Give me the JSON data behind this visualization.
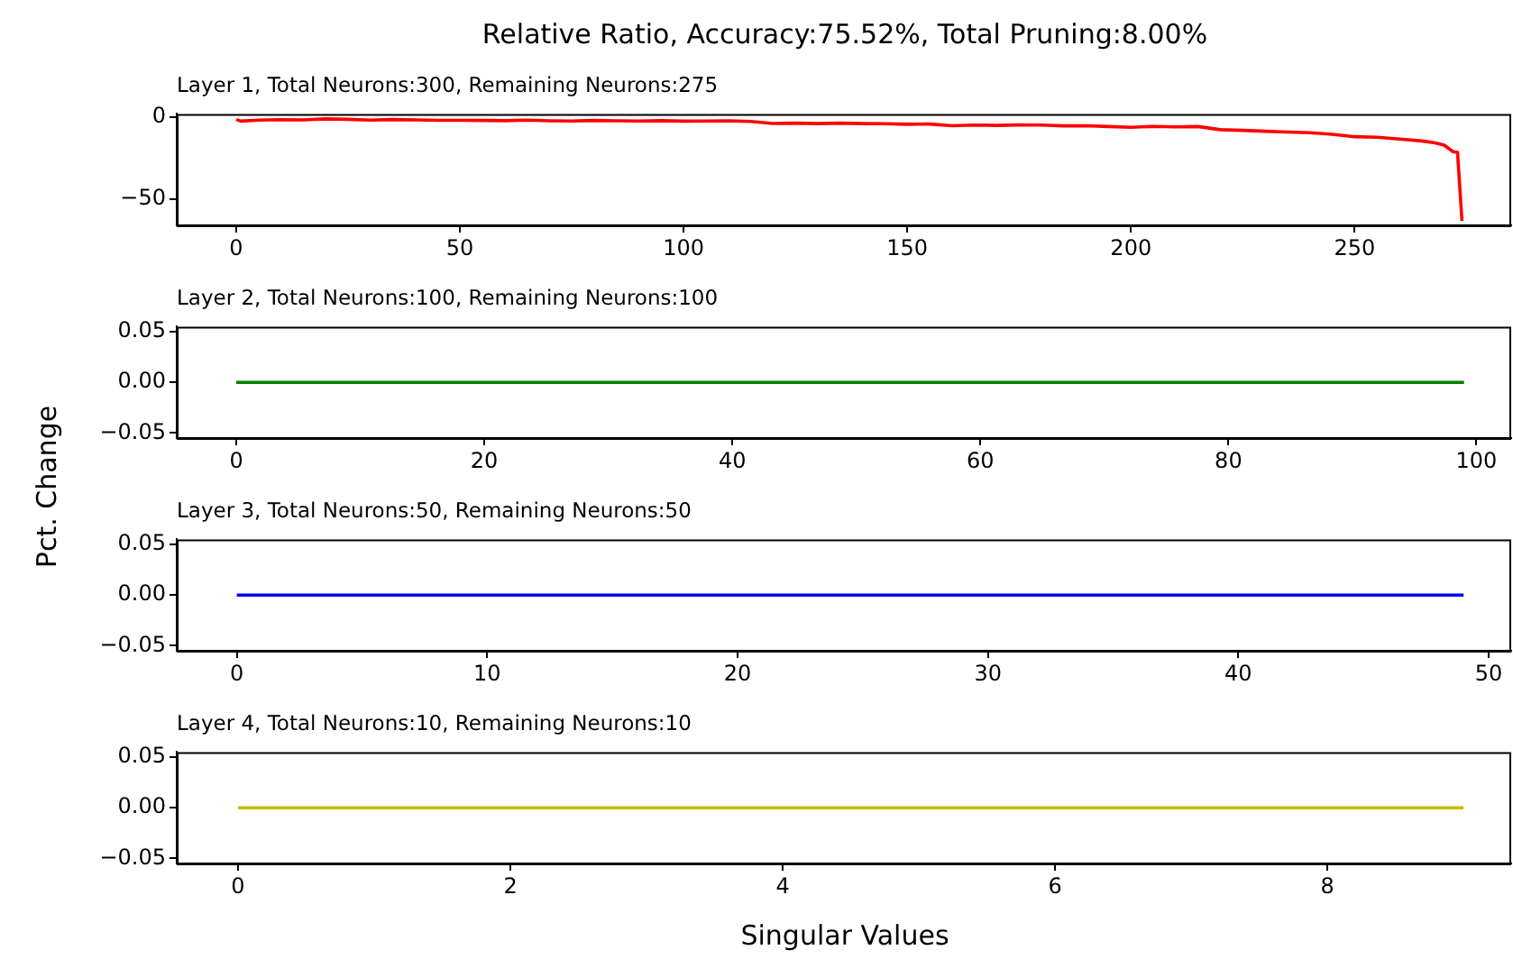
{
  "chart_data": [
    {
      "type": "line",
      "title": "Relative Ratio, Accuracy:75.52%, Total Pruning:8.00%",
      "subtitle": "Layer 1, Total Neurons:300, Remaining Neurons:275",
      "xlim": [
        -13.3,
        285
      ],
      "xticks": [
        0,
        50,
        100,
        150,
        200,
        250
      ],
      "ylim": [
        -66,
        2
      ],
      "yticks": [
        {
          "value": -50,
          "label": "−50"
        },
        0
      ],
      "series": [
        {
          "color": "#ff0000",
          "x": [
            0,
            1,
            5,
            10,
            15,
            20,
            25,
            30,
            35,
            40,
            45,
            50,
            55,
            60,
            65,
            70,
            75,
            80,
            85,
            90,
            95,
            100,
            105,
            110,
            115,
            120,
            125,
            130,
            135,
            140,
            145,
            150,
            155,
            160,
            165,
            170,
            175,
            180,
            185,
            190,
            195,
            200,
            205,
            210,
            215,
            220,
            225,
            230,
            235,
            240,
            245,
            250,
            255,
            260,
            265,
            268,
            270,
            272,
            273,
            274
          ],
          "values": [
            -1.4,
            -2.4,
            -1.8,
            -1.5,
            -1.6,
            -1.0,
            -1.3,
            -1.8,
            -1.4,
            -1.6,
            -1.9,
            -1.9,
            -2.0,
            -2.1,
            -1.8,
            -2.2,
            -2.3,
            -2.0,
            -2.2,
            -2.3,
            -2.1,
            -2.4,
            -2.3,
            -2.2,
            -2.6,
            -3.8,
            -3.6,
            -3.9,
            -3.6,
            -3.9,
            -4.0,
            -4.3,
            -4.2,
            -5.2,
            -4.8,
            -5.0,
            -4.7,
            -4.8,
            -5.3,
            -5.2,
            -5.7,
            -6.2,
            -5.6,
            -5.9,
            -5.7,
            -7.6,
            -8.0,
            -8.6,
            -9.1,
            -9.5,
            -10.4,
            -11.9,
            -12.2,
            -13.3,
            -14.5,
            -15.7,
            -17.0,
            -21.0,
            -21.4,
            -63.3
          ]
        }
      ]
    },
    {
      "type": "line",
      "subtitle": "Layer 2, Total Neurons:100, Remaining Neurons:100",
      "ylabel": "Pct. Change",
      "xlim": [
        -4.8,
        102.8
      ],
      "xticks": [
        0,
        20,
        40,
        60,
        80,
        100
      ],
      "ylim": [
        -0.055,
        0.055
      ],
      "yticks": [
        {
          "value": -0.05,
          "label": "−0.05"
        },
        {
          "value": 0,
          "label": "0.00"
        },
        {
          "value": 0.05,
          "label": "0.05"
        }
      ],
      "series": [
        {
          "color": "#008000",
          "x": [
            0,
            1,
            2,
            3,
            4,
            5,
            6,
            7,
            8,
            9,
            10,
            11,
            12,
            13,
            14,
            15,
            16,
            17,
            18,
            19,
            20,
            21,
            22,
            23,
            24,
            25,
            26,
            27,
            28,
            29,
            30,
            31,
            32,
            33,
            34,
            35,
            36,
            37,
            38,
            39,
            40,
            41,
            42,
            43,
            44,
            45,
            46,
            47,
            48,
            49,
            50,
            51,
            52,
            53,
            54,
            55,
            56,
            57,
            58,
            59,
            60,
            61,
            62,
            63,
            64,
            65,
            66,
            67,
            68,
            69,
            70,
            71,
            72,
            73,
            74,
            75,
            76,
            77,
            78,
            79,
            80,
            81,
            82,
            83,
            84,
            85,
            86,
            87,
            88,
            89,
            90,
            91,
            92,
            93,
            94,
            95,
            96,
            97,
            98,
            99
          ],
          "values": [
            0,
            0,
            0,
            0,
            0,
            0,
            0,
            0,
            0,
            0,
            0,
            0,
            0,
            0,
            0,
            0,
            0,
            0,
            0,
            0,
            0,
            0,
            0,
            0,
            0,
            0,
            0,
            0,
            0,
            0,
            0,
            0,
            0,
            0,
            0,
            0,
            0,
            0,
            0,
            0,
            0,
            0,
            0,
            0,
            0,
            0,
            0,
            0,
            0,
            0,
            0,
            0,
            0,
            0,
            0,
            0,
            0,
            0,
            0,
            0,
            0,
            0,
            0,
            0,
            0,
            0,
            0,
            0,
            0,
            0,
            0,
            0,
            0,
            0,
            0,
            0,
            0,
            0,
            0,
            0,
            0,
            0,
            0,
            0,
            0,
            0,
            0,
            0,
            0,
            0,
            0,
            0,
            0,
            0,
            0,
            0,
            0,
            0,
            0,
            0
          ]
        }
      ]
    },
    {
      "type": "line",
      "subtitle": "Layer 3, Total Neurons:50, Remaining Neurons:50",
      "xlim": [
        -2.4,
        50.9
      ],
      "xticks": [
        0,
        10,
        20,
        30,
        40,
        50
      ],
      "ylim": [
        -0.055,
        0.055
      ],
      "yticks": [
        {
          "value": -0.05,
          "label": "−0.05"
        },
        {
          "value": 0,
          "label": "0.00"
        },
        {
          "value": 0.05,
          "label": "0.05"
        }
      ],
      "series": [
        {
          "color": "#0000ff",
          "x": [
            0,
            1,
            2,
            3,
            4,
            5,
            6,
            7,
            8,
            9,
            10,
            11,
            12,
            13,
            14,
            15,
            16,
            17,
            18,
            19,
            20,
            21,
            22,
            23,
            24,
            25,
            26,
            27,
            28,
            29,
            30,
            31,
            32,
            33,
            34,
            35,
            36,
            37,
            38,
            39,
            40,
            41,
            42,
            43,
            44,
            45,
            46,
            47,
            48,
            49
          ],
          "values": [
            0,
            0,
            0,
            0,
            0,
            0,
            0,
            0,
            0,
            0,
            0,
            0,
            0,
            0,
            0,
            0,
            0,
            0,
            0,
            0,
            0,
            0,
            0,
            0,
            0,
            0,
            0,
            0,
            0,
            0,
            0,
            0,
            0,
            0,
            0,
            0,
            0,
            0,
            0,
            0,
            0,
            0,
            0,
            0,
            0,
            0,
            0,
            0,
            0,
            0
          ]
        }
      ]
    },
    {
      "type": "line",
      "subtitle": "Layer 4, Total Neurons:10, Remaining Neurons:10",
      "xlabel": "Singular Values",
      "xlim": [
        -0.45,
        9.35
      ],
      "xticks": [
        0,
        2,
        4,
        6,
        8
      ],
      "ylim": [
        -0.055,
        0.055
      ],
      "yticks": [
        {
          "value": -0.05,
          "label": "−0.05"
        },
        {
          "value": 0,
          "label": "0.00"
        },
        {
          "value": 0.05,
          "label": "0.05"
        }
      ],
      "series": [
        {
          "color": "#bfbf00",
          "x": [
            0,
            1,
            2,
            3,
            4,
            5,
            6,
            7,
            8,
            9
          ],
          "values": [
            0,
            0,
            0,
            0,
            0,
            0,
            0,
            0,
            0,
            0
          ]
        }
      ]
    }
  ]
}
